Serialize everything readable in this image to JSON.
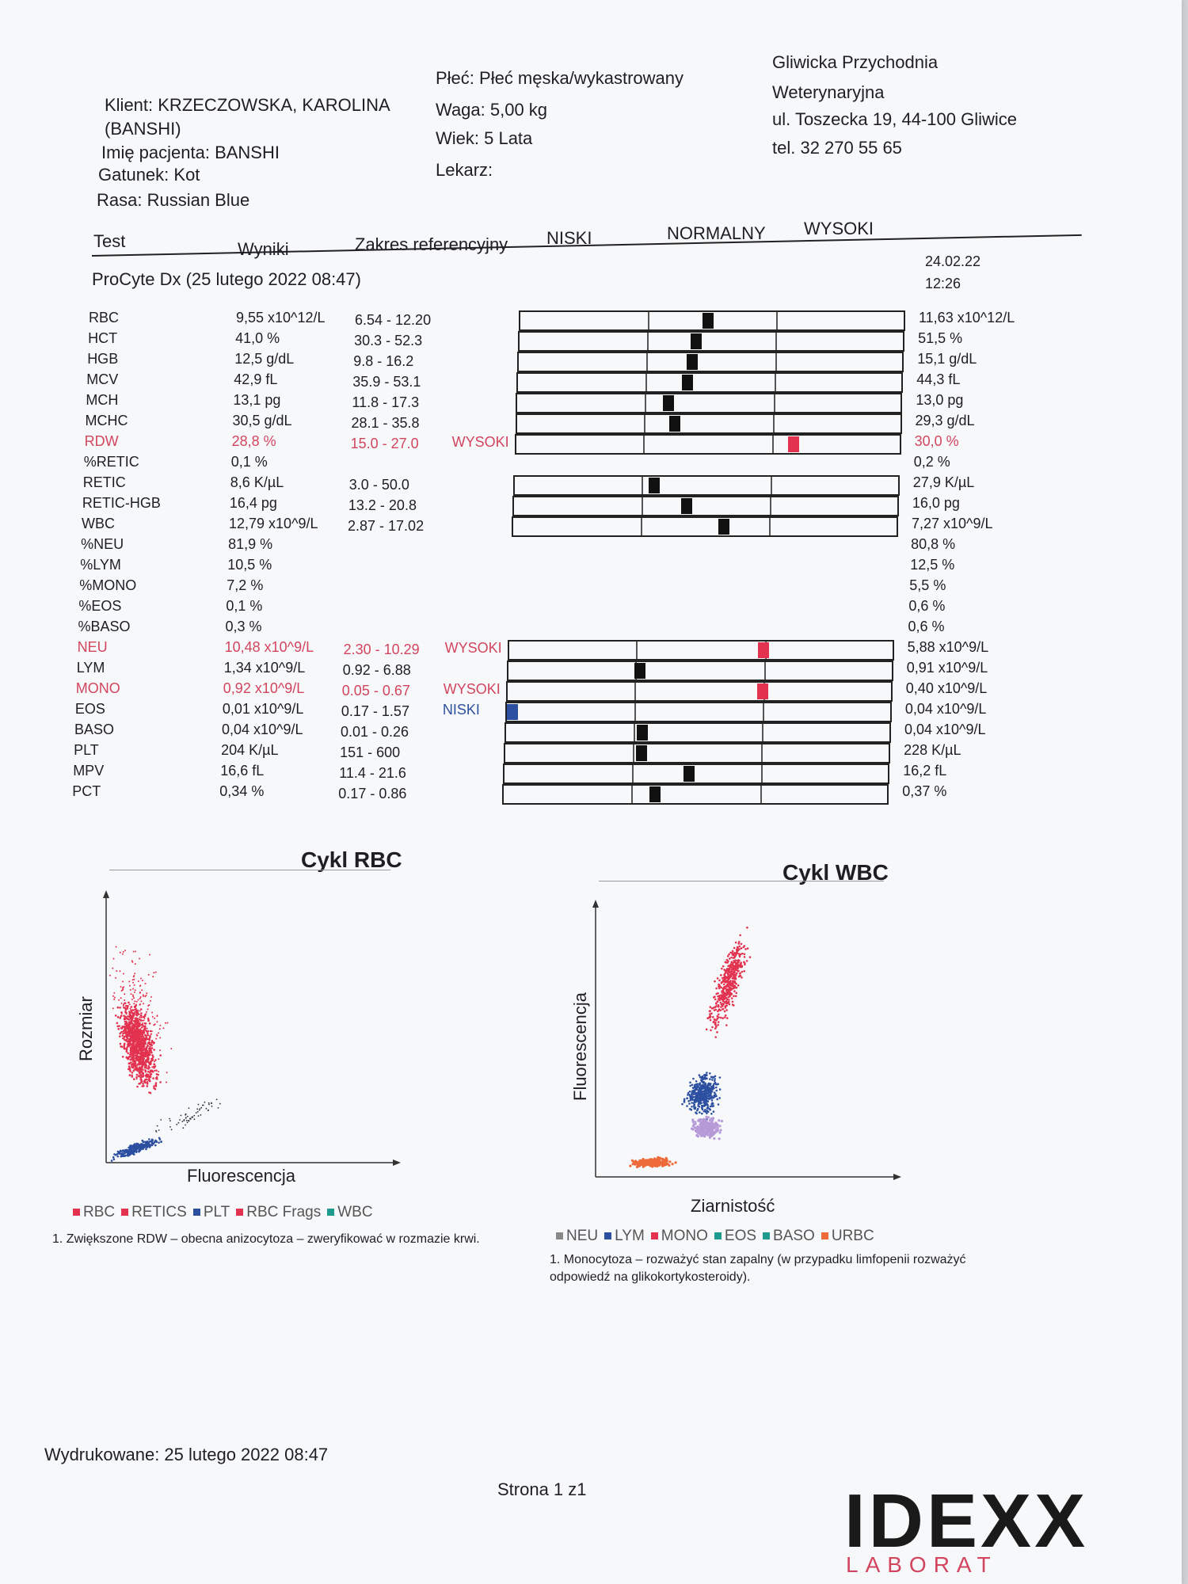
{
  "client": {
    "klient": "Klient: KRZECZOWSKA, KAROLINA",
    "klient_cont": "(BANSHI)",
    "pacjent": "Imię pacjenta: BANSHI",
    "gatunek": "Gatunek: Kot",
    "rasa": "Rasa: Russian Blue"
  },
  "patient": {
    "plec": "Płeć: Płeć męska/wykastrowany",
    "waga": "Waga: 5,00 kg",
    "wiek": "Wiek: 5 Lata",
    "lekarz": "Lekarz:"
  },
  "clinic": {
    "name1": "Gliwicka Przychodnia",
    "name2": "Weterynaryjna",
    "address": "ul. Toszecka 19, 44-100 Gliwice",
    "phone": "tel. 32 270 55 65"
  },
  "table_header": {
    "test": "Test",
    "wyniki": "Wyniki",
    "zakres": "Zakres referencyjny",
    "niski": "NISKI",
    "normalny": "NORMALNY",
    "wysoki": "WYSOKI"
  },
  "analyzer": "ProCyte Dx (25 lutego 2022 08:47)",
  "previous": {
    "date": "24.02.22",
    "time": "12:26"
  },
  "rows": [
    {
      "test": "RBC",
      "result": "9,55 x10^12/L",
      "range": "6.54 - 12.20",
      "flag": "",
      "prev": "11,63 x10^12/L",
      "pos": 0.49,
      "alert": false
    },
    {
      "test": "HCT",
      "result": "41,0 %",
      "range": "30.3 - 52.3",
      "flag": "",
      "prev": "51,5 %",
      "pos": 0.46,
      "alert": false
    },
    {
      "test": "HGB",
      "result": "12,5 g/dL",
      "range": "9.8 - 16.2",
      "flag": "",
      "prev": "15,1 g/dL",
      "pos": 0.45,
      "alert": false
    },
    {
      "test": "MCV",
      "result": "42,9 fL",
      "range": "35.9 - 53.1",
      "flag": "",
      "prev": "44,3 fL",
      "pos": 0.44,
      "alert": false
    },
    {
      "test": "MCH",
      "result": "13,1 pg",
      "range": "11.8 - 17.3",
      "flag": "",
      "prev": "13,0 pg",
      "pos": 0.39,
      "alert": false
    },
    {
      "test": "MCHC",
      "result": "30,5 g/dL",
      "range": "28.1 - 35.8",
      "flag": "",
      "prev": "29,3 g/dL",
      "pos": 0.41,
      "alert": false
    },
    {
      "test": "RDW",
      "result": "28,8 %",
      "range": "15.0 - 27.0",
      "flag": "WYSOKI",
      "prev": "30,0 %",
      "pos": 0.73,
      "alert": true
    },
    {
      "test": "%RETIC",
      "result": "0,1 %",
      "range": "",
      "flag": "",
      "prev": "0,2 %",
      "pos": null,
      "alert": false
    },
    {
      "test": "RETIC",
      "result": "8,6 K/µL",
      "range": "3.0 - 50.0",
      "flag": "",
      "prev": "27,9 K/µL",
      "pos": 0.36,
      "alert": false
    },
    {
      "test": "RETIC-HGB",
      "result": "16,4 pg",
      "range": "13.2 - 20.8",
      "flag": "",
      "prev": "16,0 pg",
      "pos": 0.45,
      "alert": false
    },
    {
      "test": "WBC",
      "result": "12,79 x10^9/L",
      "range": "2.87 - 17.02",
      "flag": "",
      "prev": "7,27 x10^9/L",
      "pos": 0.55,
      "alert": false
    },
    {
      "test": "%NEU",
      "result": "81,9 %",
      "range": "",
      "flag": "",
      "prev": "80,8 %",
      "pos": null,
      "alert": false
    },
    {
      "test": "%LYM",
      "result": "10,5 %",
      "range": "",
      "flag": "",
      "prev": "12,5 %",
      "pos": null,
      "alert": false
    },
    {
      "test": "%MONO",
      "result": "7,2 %",
      "range": "",
      "flag": "",
      "prev": "5,5 %",
      "pos": null,
      "alert": false
    },
    {
      "test": "%EOS",
      "result": "0,1 %",
      "range": "",
      "flag": "",
      "prev": "0,6 %",
      "pos": null,
      "alert": false
    },
    {
      "test": "%BASO",
      "result": "0,3 %",
      "range": "",
      "flag": "",
      "prev": "0,6 %",
      "pos": null,
      "alert": false
    },
    {
      "test": "NEU",
      "result": "10,48 x10^9/L",
      "range": "2.30 - 10.29",
      "flag": "WYSOKI",
      "prev": "5,88 x10^9/L",
      "pos": 0.67,
      "alert": true
    },
    {
      "test": "LYM",
      "result": "1,34 x10^9/L",
      "range": "0.92 - 6.88",
      "flag": "",
      "prev": "0,91 x10^9/L",
      "pos": 0.34,
      "alert": false
    },
    {
      "test": "MONO",
      "result": "0,92 x10^9/L",
      "range": "0.05 - 0.67",
      "flag": "WYSOKI",
      "prev": "0,40 x10^9/L",
      "pos": 0.67,
      "alert": true
    },
    {
      "test": "EOS",
      "result": "0,01 x10^9/L",
      "range": "0.17 - 1.57",
      "flag": "NISKI",
      "prev": "0,04 x10^9/L",
      "pos": 0.0,
      "alert": true
    },
    {
      "test": "BASO",
      "result": "0,04 x10^9/L",
      "range": "0.01 - 0.26",
      "flag": "",
      "prev": "0,04 x10^9/L",
      "pos": 0.35,
      "alert": false
    },
    {
      "test": "PLT",
      "result": "204 K/µL",
      "range": "151 - 600",
      "flag": "",
      "prev": "228 K/µL",
      "pos": 0.35,
      "alert": false
    },
    {
      "test": "MPV",
      "result": "16,6 fL",
      "range": "11.4 - 21.6",
      "flag": "",
      "prev": "16,2 fL",
      "pos": 0.48,
      "alert": false
    },
    {
      "test": "PCT",
      "result": "0,34 %",
      "range": "0.17 - 0.86",
      "flag": "",
      "prev": "0,37 %",
      "pos": 0.39,
      "alert": false
    }
  ],
  "rbc_plot": {
    "title": "Cykl RBC",
    "xlabel": "Fluorescencja",
    "ylabel": "Rozmiar",
    "legend": [
      {
        "label": "RBC",
        "color": "#e2324f"
      },
      {
        "label": "RETICS",
        "color": "#e2324f"
      },
      {
        "label": "PLT",
        "color": "#2c4fa0"
      },
      {
        "label": "RBC Frags",
        "color": "#e2324f"
      },
      {
        "label": "WBC",
        "color": "#1f9a8e"
      }
    ],
    "note": "1. Zwiększone RDW – obecna anizocytoza – zweryfikować w rozmazie krwi."
  },
  "wbc_plot": {
    "title": "Cykl WBC",
    "xlabel": "Ziarnistość",
    "ylabel": "Fluorescencja",
    "legend": [
      {
        "label": "NEU",
        "color": "#888888"
      },
      {
        "label": "LYM",
        "color": "#2c4fa0"
      },
      {
        "label": "MONO",
        "color": "#e2324f"
      },
      {
        "label": "EOS",
        "color": "#1f9a8e"
      },
      {
        "label": "BASO",
        "color": "#1f9a8e"
      },
      {
        "label": "URBC",
        "color": "#ee6a3a"
      }
    ],
    "note1": "1. Monocytoza – rozważyć stan zapalny (w przypadku limfopenii rozważyć",
    "note2": "odpowiedź na glikokortykosteroidy)."
  },
  "colors": {
    "high": "#e2324f",
    "low": "#2c4fa0",
    "rbc": "#e2324f",
    "plt": "#2c4fa0",
    "lym": "#2c4fa0",
    "mono": "#b69ad8",
    "urbc": "#ee6a3a"
  },
  "footer": {
    "printed": "Wydrukowane: 25 lutego 2022 08:47",
    "page": "Strona 1 z1"
  },
  "logo": {
    "name": "IDEXX",
    "sub": "LABORAT"
  }
}
